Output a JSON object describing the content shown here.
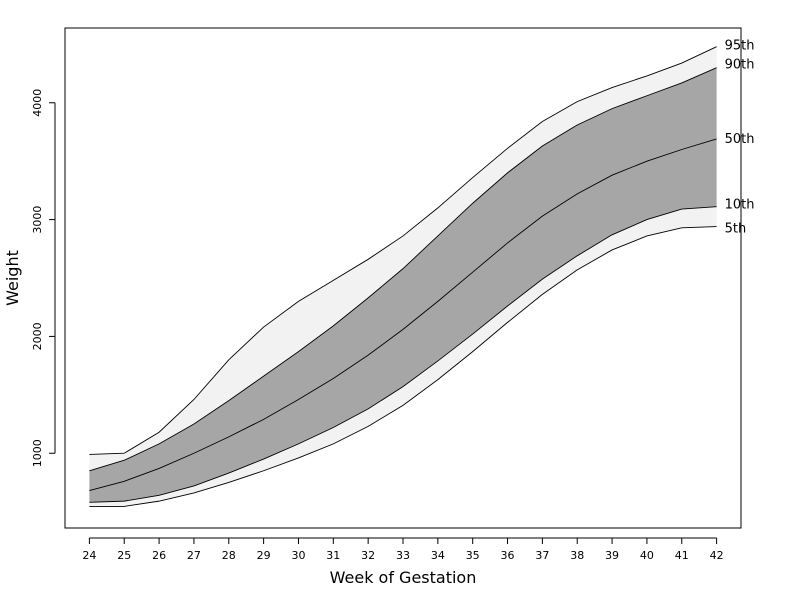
{
  "chart_data": {
    "type": "area",
    "title": "",
    "xlabel": "Week of Gestation",
    "ylabel": "Weight",
    "xlim": [
      23.3,
      42.7
    ],
    "ylim": [
      360,
      4640
    ],
    "x_ticks": [
      24,
      25,
      26,
      27,
      28,
      29,
      30,
      31,
      32,
      33,
      34,
      35,
      36,
      37,
      38,
      39,
      40,
      41,
      42
    ],
    "y_ticks": [
      1000,
      2000,
      3000,
      4000
    ],
    "grid": false,
    "legend": "none",
    "x": [
      24,
      25,
      26,
      27,
      28,
      29,
      30,
      31,
      32,
      33,
      34,
      35,
      36,
      37,
      38,
      39,
      40,
      41,
      42
    ],
    "series": [
      {
        "name": "95th",
        "values": [
          990,
          1000,
          1180,
          1460,
          1800,
          2080,
          2300,
          2480,
          2660,
          2860,
          3100,
          3360,
          3610,
          3840,
          4010,
          4130,
          4230,
          4340,
          4480
        ]
      },
      {
        "name": "90th",
        "values": [
          850,
          940,
          1080,
          1250,
          1450,
          1660,
          1870,
          2090,
          2330,
          2580,
          2860,
          3140,
          3400,
          3630,
          3810,
          3950,
          4060,
          4170,
          4300
        ]
      },
      {
        "name": "50th",
        "values": [
          680,
          760,
          870,
          1000,
          1140,
          1290,
          1460,
          1640,
          1840,
          2060,
          2300,
          2550,
          2800,
          3030,
          3220,
          3380,
          3500,
          3600,
          3690
        ]
      },
      {
        "name": "10th",
        "values": [
          580,
          590,
          640,
          720,
          830,
          950,
          1080,
          1220,
          1380,
          1570,
          1790,
          2020,
          2260,
          2490,
          2690,
          2870,
          3000,
          3090,
          3110
        ]
      },
      {
        "name": "5th",
        "values": [
          545,
          545,
          590,
          660,
          750,
          850,
          960,
          1080,
          1230,
          1410,
          1630,
          1870,
          2120,
          2360,
          2570,
          2740,
          2860,
          2930,
          2940
        ]
      }
    ],
    "band_colors": {
      "outer": "#f2f2f2",
      "inner": "#a6a6a6",
      "line": "#000000"
    }
  }
}
